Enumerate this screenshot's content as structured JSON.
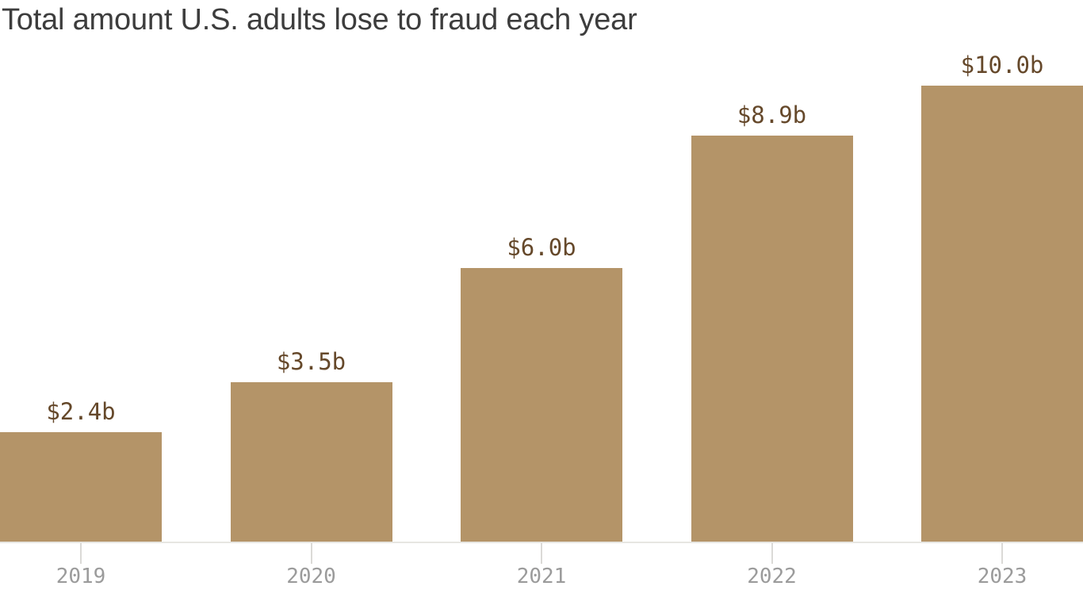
{
  "page": {
    "title": "Total amount U.S. adults lose to fraud each year"
  },
  "chart_data": {
    "type": "bar",
    "title": "Total amount U.S. adults lose to fraud each year",
    "categories": [
      "2019",
      "2020",
      "2021",
      "2022",
      "2023"
    ],
    "values": [
      2.4,
      3.5,
      6.0,
      8.9,
      10.0
    ],
    "value_labels": [
      "$2.4b",
      "$3.5b",
      "$6.0b",
      "$8.9b",
      "$10.0b"
    ],
    "xlabel": "",
    "ylabel": "",
    "ylim": [
      0,
      10.0
    ],
    "grid": false,
    "legend": "none",
    "colors": {
      "bar": "#b49468",
      "value_label": "#65482a",
      "axis_label": "#9b9b9b",
      "axis_line": "#e7e6e2",
      "tick": "#dbdad7",
      "title": "#3d3d3d",
      "background": "#ffffff"
    }
  }
}
